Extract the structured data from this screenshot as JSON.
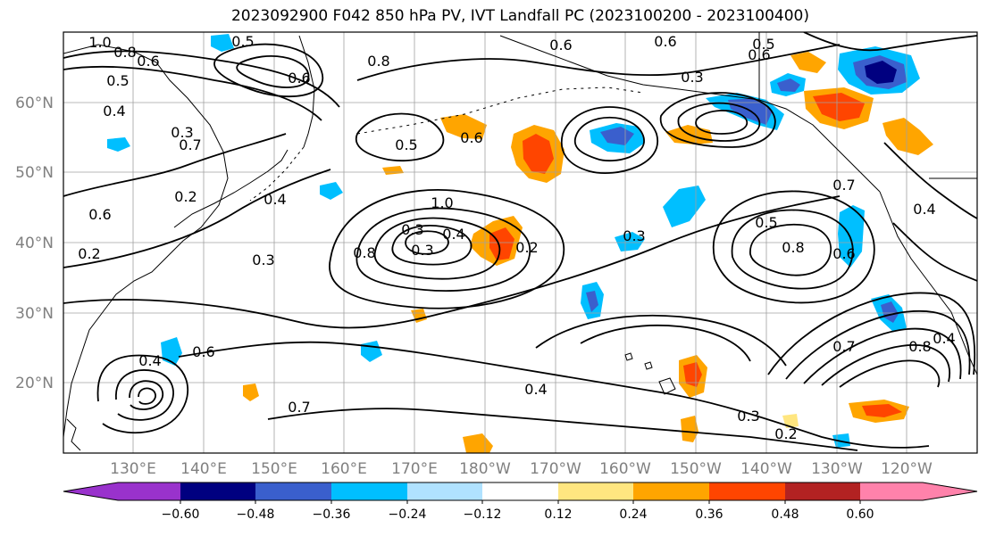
{
  "title": "2023092900 F042 850 hPa PV, IVT Landfall PC (2023100200 - 2023100400)",
  "map": {
    "lat_labels": [
      "60°N",
      "50°N",
      "40°N",
      "30°N",
      "20°N"
    ],
    "lon_labels": [
      "130°E",
      "140°E",
      "150°E",
      "160°E",
      "170°E",
      "180°W",
      "170°W",
      "160°W",
      "150°W",
      "140°W",
      "130°W",
      "120°W"
    ],
    "contour_labels": [
      "1.0",
      "0.8",
      "0.6",
      "0.5",
      "0.4",
      "0.3",
      "0.7",
      "0.5",
      "0.6",
      "0.8",
      "0.6",
      "0.6",
      "0.5",
      "0.6",
      "0.3",
      "0.5",
      "0.6",
      "1.0",
      "0.8",
      "0.3",
      "0.3",
      "0.4",
      "0.2",
      "0.4",
      "0.3",
      "0.6",
      "0.2",
      "0.2",
      "0.4",
      "0.6",
      "0.7",
      "0.4",
      "0.3",
      "0.5",
      "0.8",
      "0.6",
      "0.2",
      "0.3",
      "0.7",
      "0.8",
      "0.4",
      "0.7",
      "0.4"
    ]
  },
  "colorbar": {
    "tick_labels": [
      "−0.60",
      "−0.48",
      "−0.36",
      "−0.24",
      "−0.12",
      "0.12",
      "0.24",
      "0.36",
      "0.48",
      "0.60"
    ],
    "colors": [
      "#9932cc",
      "#000080",
      "#3a5fcd",
      "#00bfff",
      "#b0e2ff",
      "#ffffff",
      "#ffe680",
      "#ffa500",
      "#ff4500",
      "#b22222",
      "#ff82ab"
    ]
  }
}
